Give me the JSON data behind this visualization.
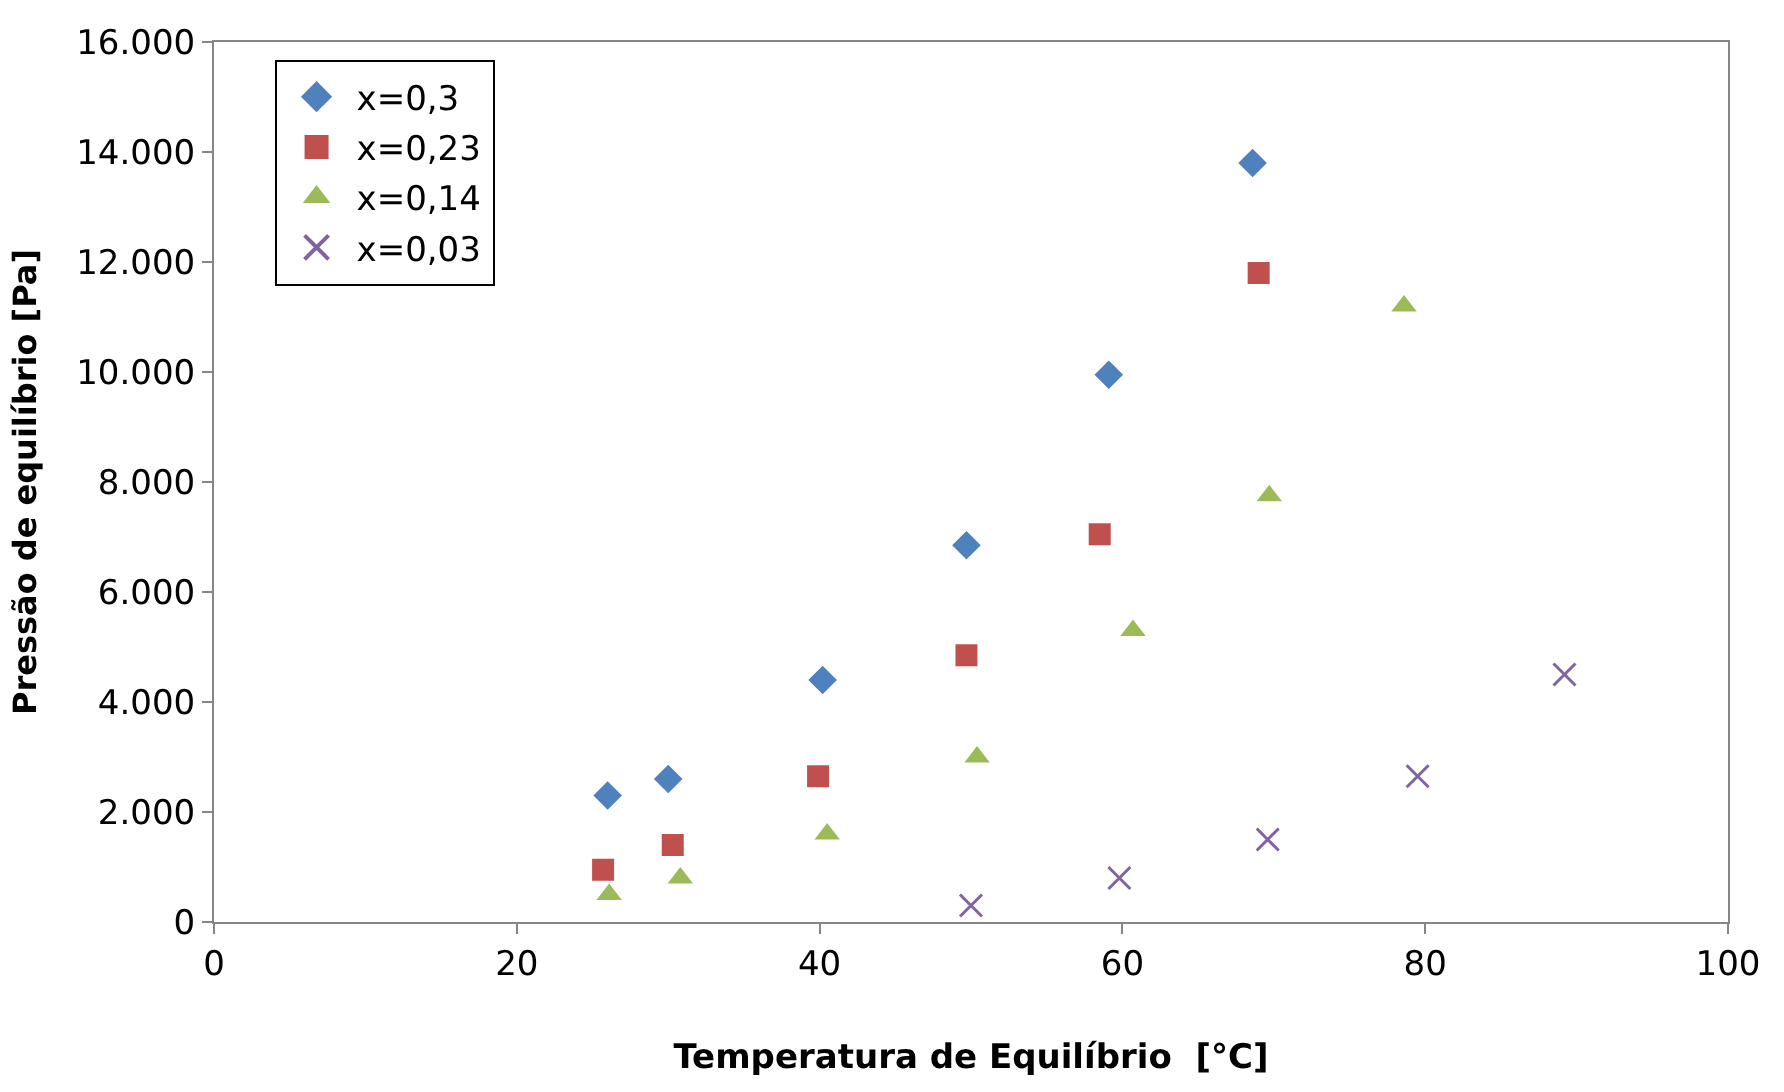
{
  "chart_data": {
    "type": "scatter",
    "xlabel": "Temperatura de Equilíbrio  [°C]",
    "ylabel": "Pressão de equilíbrio [Pa]",
    "xlim": [
      0,
      100
    ],
    "xticks": [
      0,
      20,
      40,
      60,
      80,
      100
    ],
    "ylim": [
      0,
      16000
    ],
    "yticks": [
      {
        "value": 0,
        "label": "0"
      },
      {
        "value": 2000,
        "label": "2.000"
      },
      {
        "value": 4000,
        "label": "4.000"
      },
      {
        "value": 6000,
        "label": "6.000"
      },
      {
        "value": 8000,
        "label": "8.000"
      },
      {
        "value": 10000,
        "label": "10.000"
      },
      {
        "value": 12000,
        "label": "12.000"
      },
      {
        "value": 14000,
        "label": "14.000"
      },
      {
        "value": 16000,
        "label": "16.000"
      }
    ],
    "legend": "top left",
    "series": [
      {
        "name": "x=0,3",
        "color": "#4f81bd",
        "marker": "diamond",
        "x": [
          26.0,
          30.0,
          40.2,
          49.7,
          59.1,
          68.6
        ],
        "values": [
          2300,
          2600,
          4400,
          6850,
          9950,
          13800
        ]
      },
      {
        "name": "x=0,23",
        "color": "#c0504d",
        "marker": "square",
        "x": [
          25.7,
          30.3,
          39.9,
          49.7,
          58.5,
          69.0
        ],
        "values": [
          950,
          1400,
          2650,
          4850,
          7050,
          11800
        ]
      },
      {
        "name": "x=0,14",
        "color": "#9bbb59",
        "marker": "triangle",
        "x": [
          26.1,
          30.8,
          40.5,
          50.4,
          60.7,
          69.7,
          78.6
        ],
        "values": [
          500,
          800,
          1600,
          3000,
          5300,
          7750,
          11200
        ]
      },
      {
        "name": "x=0,03",
        "color": "#8064a2",
        "marker": "cross",
        "x": [
          50.0,
          59.8,
          69.6,
          79.5,
          89.2
        ],
        "values": [
          300,
          800,
          1500,
          2650,
          4500
        ]
      }
    ]
  }
}
